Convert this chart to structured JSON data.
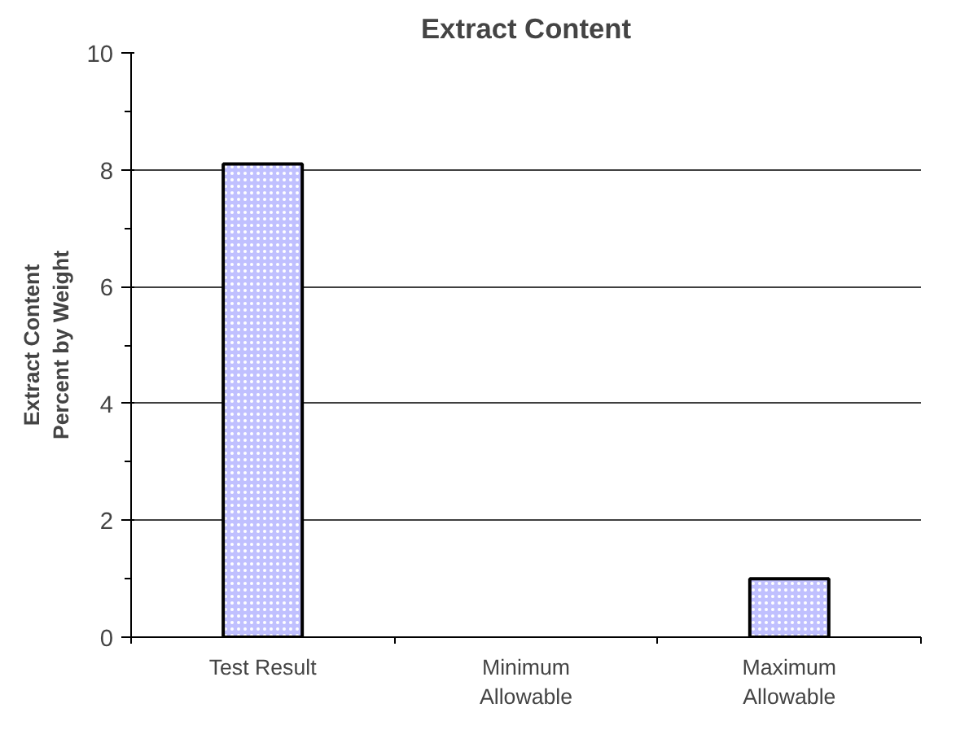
{
  "chart_data": {
    "type": "bar",
    "title": "Extract Content",
    "ylabel": "Extract Content\nPercent by Weight",
    "categories": [
      "Test Result",
      "Minimum\nAllowable",
      "Maximum\nAllowable"
    ],
    "values": [
      8.1,
      null,
      1.0
    ],
    "color": "#c0c0ff",
    "ylim": [
      0,
      10
    ],
    "yticks": [
      0,
      {
        "value": 1,
        "label": null
      },
      2,
      {
        "value": 3,
        "label": null
      },
      4,
      {
        "value": 5,
        "label": null
      },
      6,
      {
        "value": 7,
        "label": null
      },
      8,
      {
        "value": 9,
        "label": null
      },
      10
    ],
    "grid": "y"
  }
}
